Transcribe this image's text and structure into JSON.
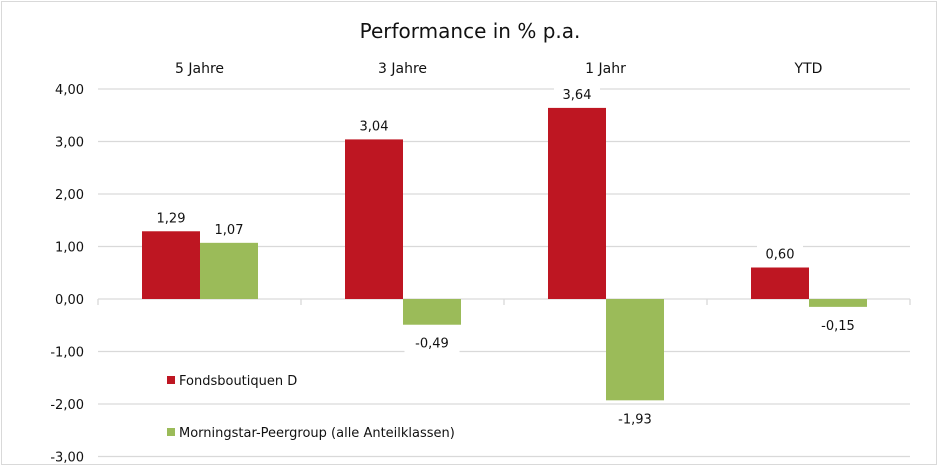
{
  "chart_data": {
    "type": "bar",
    "title": "Performance  in % p.a.",
    "categories": [
      "5 Jahre",
      "3 Jahre",
      "1 Jahr",
      "YTD"
    ],
    "series": [
      {
        "name": "Fondsboutiquen D",
        "values": [
          1.29,
          3.04,
          3.64,
          0.6
        ],
        "labels": [
          "1,29",
          "3,04",
          "3,64",
          "0,60"
        ],
        "color": "#be1622"
      },
      {
        "name": "Morningstar-Peergroup (alle Anteilklassen)",
        "values": [
          1.07,
          -0.49,
          -1.93,
          -0.15
        ],
        "labels": [
          "1,07",
          "-0,49",
          "-1,93",
          "-0,15"
        ],
        "color": "#9bbb59"
      }
    ],
    "ylim": [
      -3,
      4
    ],
    "yticks": [
      4,
      3,
      2,
      1,
      0,
      -1,
      -2,
      -3
    ],
    "ytick_labels": [
      "4,00",
      "3,00",
      "2,00",
      "1,00",
      "0,00",
      "-1,00",
      "-2,00",
      "-3,00"
    ],
    "category_labels_position": "top",
    "grid": true,
    "legend_position": "bottom-left-inside"
  }
}
